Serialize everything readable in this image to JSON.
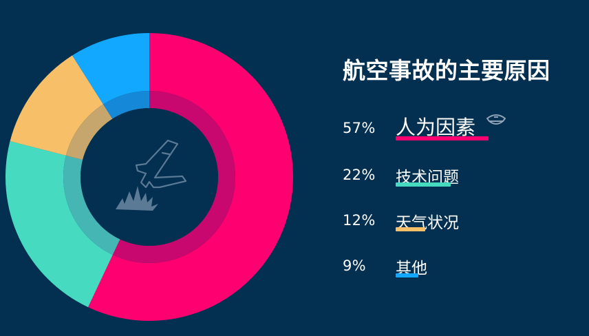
{
  "chart_data": {
    "type": "pie",
    "title": "航空事故的主要原因",
    "categories": [
      "人为因素",
      "技术问题",
      "天气状况",
      "其他"
    ],
    "values": [
      57,
      22,
      12,
      9
    ],
    "value_labels": [
      "57%",
      "22%",
      "12%",
      "9%"
    ],
    "colors": [
      "#FF0070",
      "#46DBC0",
      "#F7C068",
      "#12A8FF"
    ],
    "inner_ring_colors": [
      "#C8086E",
      "#46B6B4",
      "#C6A66C",
      "#1589D8"
    ],
    "legend_placement": "right"
  },
  "colors": {
    "background": "#033050",
    "center_icon": "#5B7A95"
  },
  "icons": {
    "center": "plane-crash-icon",
    "legend_first": "pilot-cap-icon"
  }
}
